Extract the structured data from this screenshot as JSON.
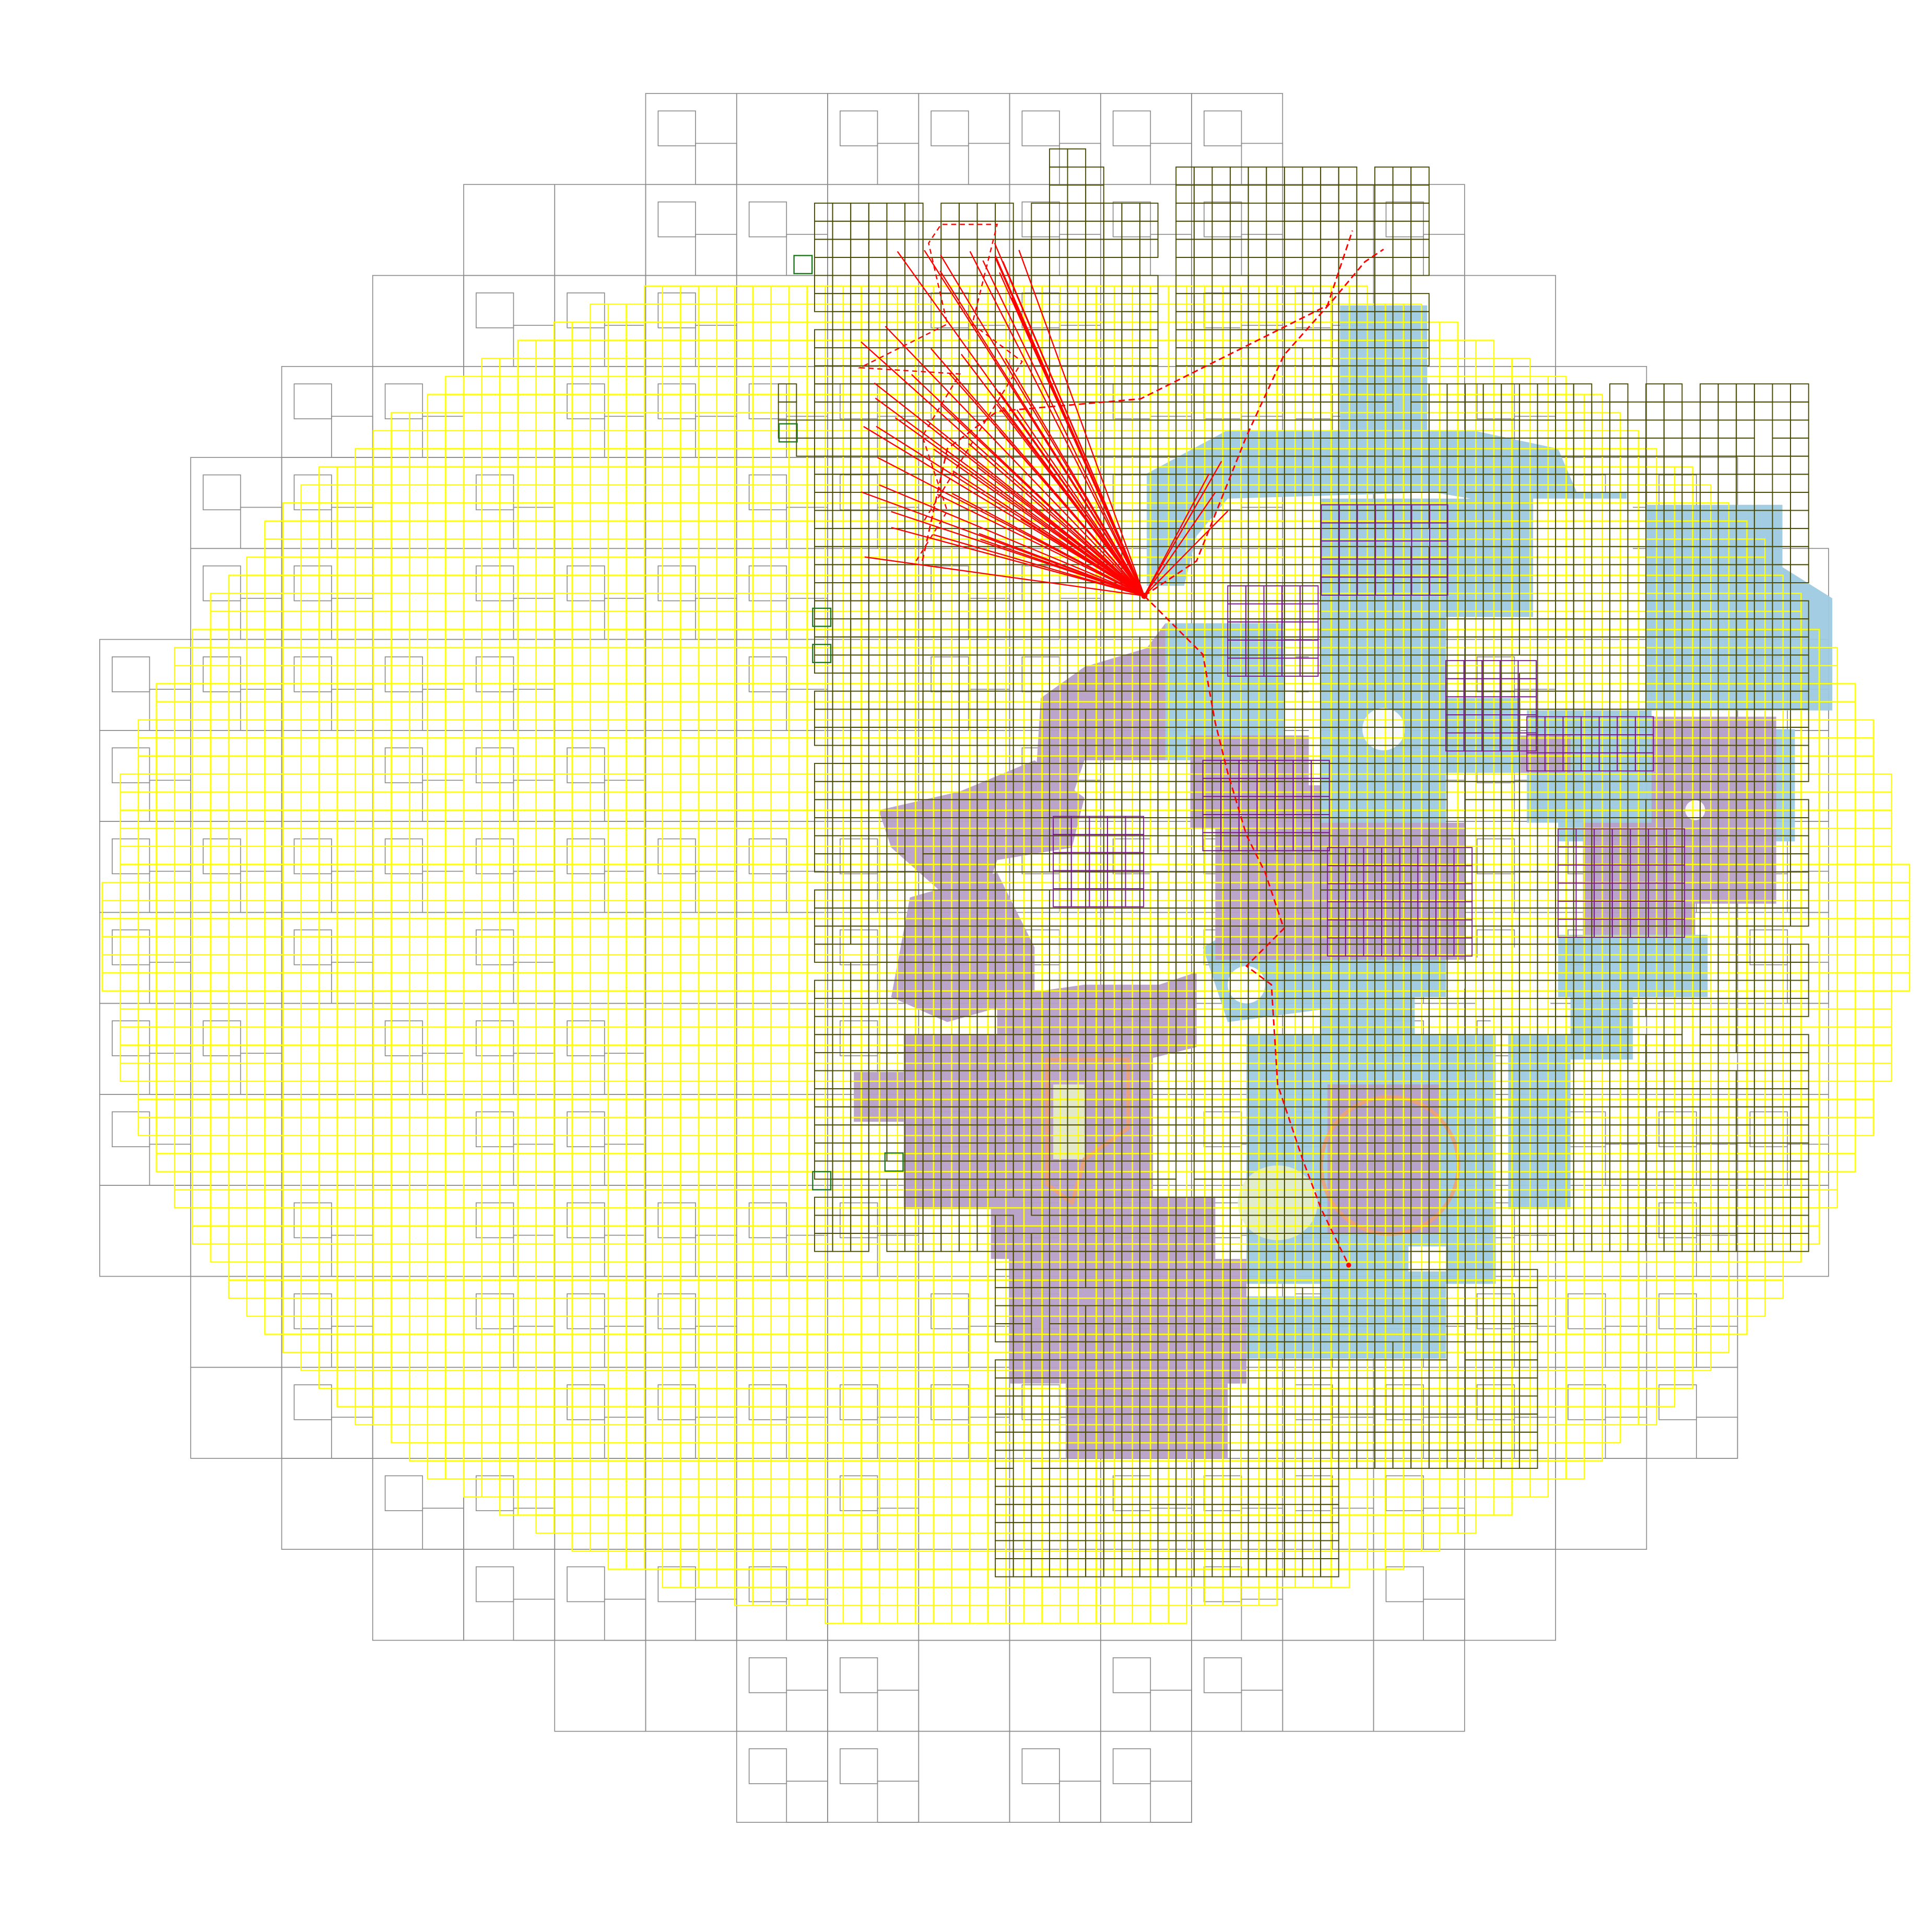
{
  "map": {
    "kind": "navmesh-debug-overlay",
    "background_color": "#ffffff",
    "layers": [
      {
        "name": "outer-grid",
        "stroke": "#8c8c8c",
        "description_visible": false
      },
      {
        "name": "yellow-navmesh-grid",
        "stroke": "#ffff00"
      },
      {
        "name": "dark-olive-grid",
        "stroke": "#4a4a00"
      },
      {
        "name": "purple-grid",
        "stroke": "#7a1a8a"
      },
      {
        "name": "green-grid",
        "stroke": "#1a7a1a"
      },
      {
        "name": "walkable-blue",
        "fill": "#9ecae1"
      },
      {
        "name": "walkable-purple",
        "fill": "#b8a0c8"
      },
      {
        "name": "raycast-lines",
        "stroke": "#ff0000"
      },
      {
        "name": "path-line",
        "stroke": "#ff0000",
        "dashed": true
      }
    ],
    "icons": [
      "ray-origin-marker",
      "path-end-marker"
    ]
  }
}
